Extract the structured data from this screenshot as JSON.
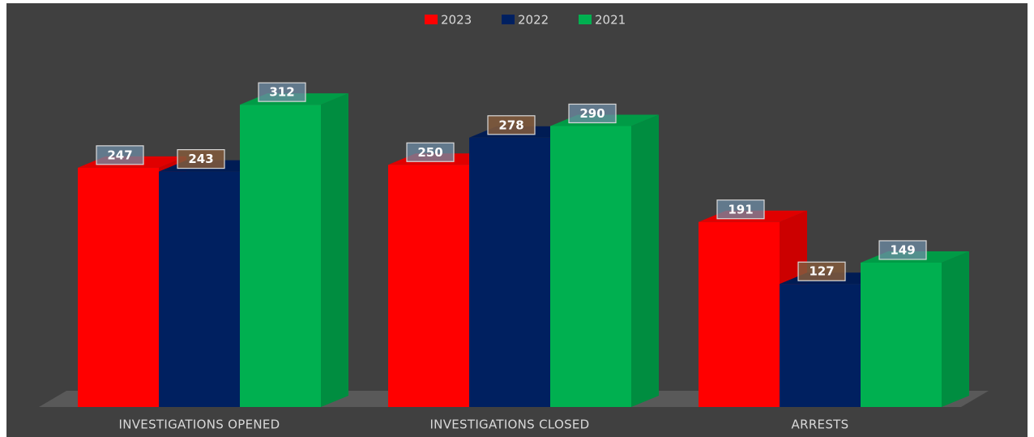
{
  "chart_data": {
    "type": "bar3d",
    "categories": [
      "INVESTIGATIONS OPENED",
      "INVESTIGATIONS CLOSED",
      "ARRESTS"
    ],
    "series": [
      {
        "name": "2023",
        "color": "#ff0000",
        "values": [
          247,
          250,
          191
        ]
      },
      {
        "name": "2022",
        "color": "#002060",
        "values": [
          243,
          278,
          127
        ]
      },
      {
        "name": "2021",
        "color": "#00b050",
        "values": [
          312,
          290,
          149
        ]
      }
    ]
  }
}
